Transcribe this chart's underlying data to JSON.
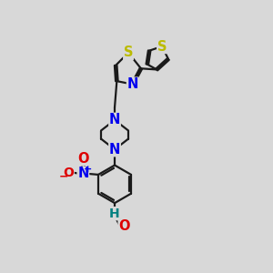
{
  "bg_color": "#d8d8d8",
  "bond_color": "#1a1a1a",
  "bond_width": 1.6,
  "atom_colors": {
    "N": "#0000ee",
    "O": "#dd0000",
    "S": "#bbbb00",
    "H": "#008080"
  },
  "font_size": 10.5,
  "canvas_xlim": [
    0,
    10
  ],
  "canvas_ylim": [
    0,
    10
  ]
}
